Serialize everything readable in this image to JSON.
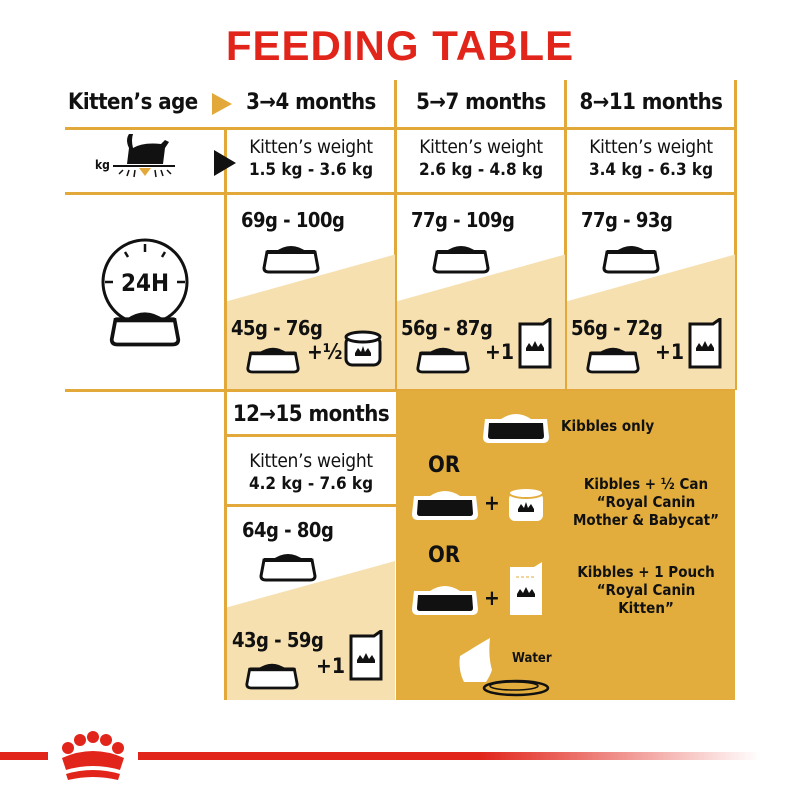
{
  "title": "FEEDING TABLE",
  "header": {
    "age_label": "Kitten’s age",
    "columns": [
      "3→4 months",
      "5→7 months",
      "8→11 months"
    ]
  },
  "weight_row": {
    "icon_label": "kg",
    "label": "Kitten’s weight",
    "values": [
      "1.5 kg - 3.6 kg",
      "2.6 kg - 4.8 kg",
      "3.4 kg - 6.3 kg"
    ]
  },
  "food_row": {
    "icon_label": "24H",
    "dry_only": [
      "69g - 100g",
      "77g - 109g",
      "77g - 93g"
    ],
    "mixed": [
      {
        "amount": "45g - 76g",
        "plus": "+½"
      },
      {
        "amount": "56g - 87g",
        "plus": "+1"
      },
      {
        "amount": "56g - 72g",
        "plus": "+1"
      }
    ]
  },
  "older": {
    "age": "12→15 months",
    "weight_label": "Kitten’s weight",
    "weight": "4.2 kg - 7.6 kg",
    "dry_only": "64g - 80g",
    "mixed_amount": "43g - 59g",
    "mixed_plus": "+1"
  },
  "legend": {
    "kibbles_only": "Kibbles only",
    "or": "OR",
    "plus": "+",
    "option_can": [
      "Kibbles + ½ Can",
      "“Royal Canin",
      "Mother & Babycat”"
    ],
    "option_pouch": [
      "Kibbles + 1 Pouch",
      "“Royal Canin",
      "Kitten”"
    ],
    "water": "Water"
  },
  "colors": {
    "title": "#e1251b",
    "lines": "#e2a93a",
    "beige": "#f6e0b0",
    "gold": "#e2ad3c"
  }
}
